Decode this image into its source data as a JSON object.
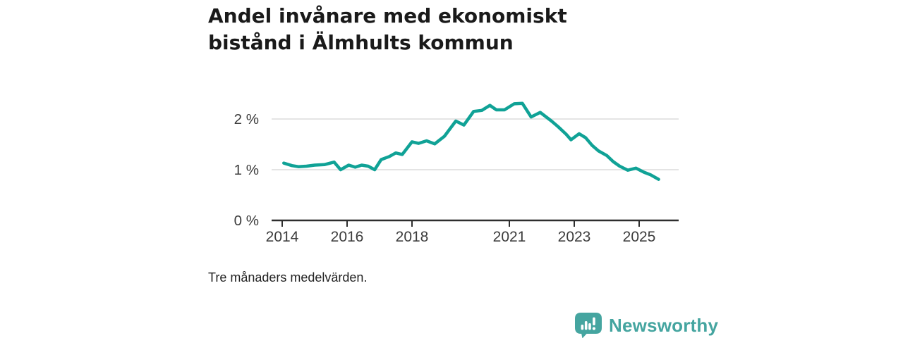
{
  "header": {
    "title": "Andel invånare med ekonomiskt\nbistånd i Älmhults kommun"
  },
  "footnote": "Tre månaders medelvärden.",
  "branding": {
    "name": "Newsworthy",
    "logo_icon": "speech-bubble-bar-chart-icon",
    "color": "#45a5a0"
  },
  "colors": {
    "line": "#10a296",
    "axis": "#2e2e2e",
    "gridline": "#dcdcdc",
    "title_text": "#1a1a1a",
    "label_text": "#3c3c3c"
  },
  "chart_data": {
    "type": "line",
    "title": "Andel invånare med ekonomiskt bistånd i Älmhults kommun",
    "note": "Tre månaders medelvärden.",
    "xlabel": "",
    "ylabel": "",
    "x_ticks": [
      2014,
      2016,
      2018,
      2021,
      2023,
      2025
    ],
    "y_ticks": [
      0,
      1,
      2
    ],
    "y_tick_suffix": " %",
    "grid_values": [
      1,
      2
    ],
    "xlim": [
      2013.67,
      2026.2
    ],
    "ylim": [
      0,
      2.6
    ],
    "legend": "none",
    "series": [
      {
        "name": "Andel invånare med ekonomiskt bistånd",
        "color": "#10a296",
        "points": [
          [
            2014.05,
            1.13
          ],
          [
            2014.3,
            1.08
          ],
          [
            2014.5,
            1.06
          ],
          [
            2014.75,
            1.07
          ],
          [
            2015.0,
            1.09
          ],
          [
            2015.3,
            1.1
          ],
          [
            2015.6,
            1.15
          ],
          [
            2015.8,
            1.0
          ],
          [
            2016.05,
            1.09
          ],
          [
            2016.25,
            1.05
          ],
          [
            2016.45,
            1.09
          ],
          [
            2016.65,
            1.07
          ],
          [
            2016.85,
            1.0
          ],
          [
            2017.05,
            1.2
          ],
          [
            2017.3,
            1.26
          ],
          [
            2017.5,
            1.33
          ],
          [
            2017.7,
            1.3
          ],
          [
            2018.0,
            1.55
          ],
          [
            2018.2,
            1.52
          ],
          [
            2018.45,
            1.57
          ],
          [
            2018.7,
            1.51
          ],
          [
            2019.0,
            1.66
          ],
          [
            2019.35,
            1.96
          ],
          [
            2019.6,
            1.88
          ],
          [
            2019.9,
            2.15
          ],
          [
            2020.15,
            2.17
          ],
          [
            2020.4,
            2.27
          ],
          [
            2020.6,
            2.18
          ],
          [
            2020.85,
            2.18
          ],
          [
            2021.15,
            2.3
          ],
          [
            2021.4,
            2.31
          ],
          [
            2021.67,
            2.04
          ],
          [
            2021.95,
            2.13
          ],
          [
            2022.3,
            1.96
          ],
          [
            2022.5,
            1.85
          ],
          [
            2022.75,
            1.7
          ],
          [
            2022.9,
            1.59
          ],
          [
            2023.15,
            1.71
          ],
          [
            2023.35,
            1.63
          ],
          [
            2023.55,
            1.48
          ],
          [
            2023.75,
            1.37
          ],
          [
            2024.0,
            1.28
          ],
          [
            2024.2,
            1.16
          ],
          [
            2024.4,
            1.07
          ],
          [
            2024.65,
            0.99
          ],
          [
            2024.9,
            1.03
          ],
          [
            2025.15,
            0.95
          ],
          [
            2025.35,
            0.9
          ],
          [
            2025.6,
            0.81
          ]
        ]
      }
    ]
  }
}
